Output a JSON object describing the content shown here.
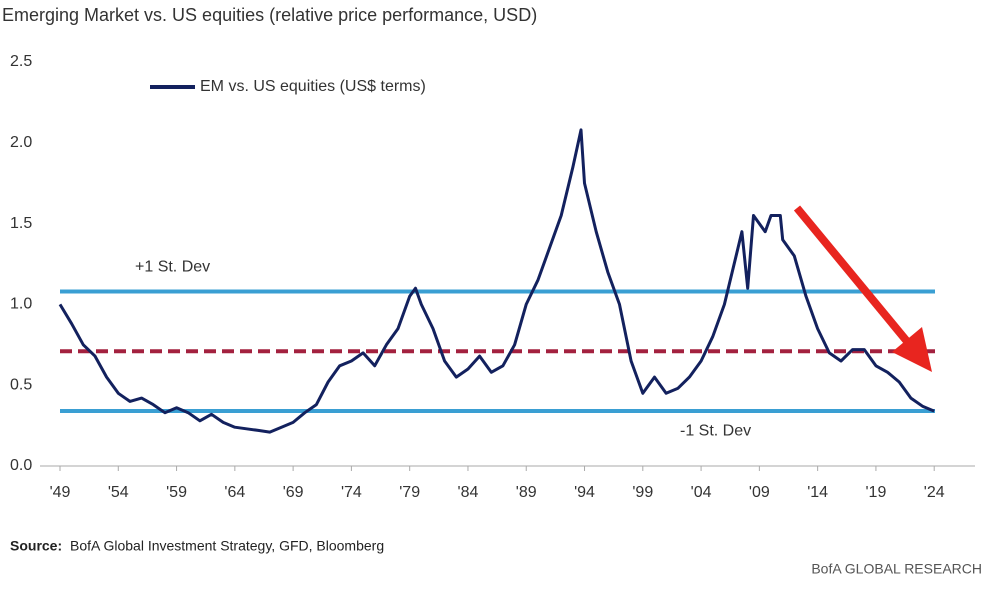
{
  "chart_data": {
    "type": "line",
    "title": "Emerging Market vs. US equities (relative price performance, USD)",
    "x": [
      1949,
      1950,
      1951,
      1952,
      1953,
      1954,
      1955,
      1956,
      1957,
      1958,
      1959,
      1960,
      1961,
      1962,
      1963,
      1964,
      1965,
      1966,
      1967,
      1968,
      1969,
      1970,
      1971,
      1972,
      1973,
      1974,
      1975,
      1976,
      1977,
      1978,
      1979,
      1979.5,
      1980,
      1981,
      1982,
      1983,
      1984,
      1985,
      1986,
      1987,
      1988,
      1989,
      1990,
      1991,
      1992,
      1993,
      1993.7,
      1994,
      1995,
      1996,
      1997,
      1998,
      1999,
      2000,
      2001,
      2002,
      2003,
      2004,
      2005,
      2006,
      2007,
      2007.5,
      2008,
      2008.5,
      2009.5,
      2010,
      2010.8,
      2011,
      2012,
      2013,
      2014,
      2015,
      2016,
      2017,
      2018,
      2019,
      2020,
      2021,
      2022,
      2023,
      2024
    ],
    "series": [
      {
        "name": "EM vs. US equities (US$ terms)",
        "color": "#13215e",
        "values": [
          1.0,
          0.88,
          0.75,
          0.68,
          0.55,
          0.45,
          0.4,
          0.42,
          0.38,
          0.33,
          0.36,
          0.33,
          0.28,
          0.32,
          0.27,
          0.24,
          0.23,
          0.22,
          0.21,
          0.24,
          0.27,
          0.33,
          0.38,
          0.52,
          0.62,
          0.65,
          0.7,
          0.62,
          0.75,
          0.85,
          1.05,
          1.1,
          1.0,
          0.85,
          0.65,
          0.55,
          0.6,
          0.68,
          0.58,
          0.62,
          0.75,
          1.0,
          1.15,
          1.35,
          1.55,
          1.85,
          2.08,
          1.75,
          1.45,
          1.2,
          1.0,
          0.65,
          0.45,
          0.55,
          0.45,
          0.48,
          0.55,
          0.65,
          0.8,
          1.0,
          1.3,
          1.45,
          1.1,
          1.55,
          1.45,
          1.55,
          1.55,
          1.4,
          1.3,
          1.05,
          0.85,
          0.7,
          0.65,
          0.72,
          0.72,
          0.62,
          0.58,
          0.52,
          0.42,
          0.37,
          0.34
        ]
      }
    ],
    "reference_lines": [
      {
        "value": 1.08,
        "label": "+1 St. Dev",
        "color": "#3a9fd3",
        "style": "solid"
      },
      {
        "value": 0.71,
        "color": "#a3213f",
        "style": "dashed"
      },
      {
        "value": 0.34,
        "label": "-1 St. Dev",
        "color": "#3a9fd3",
        "style": "solid"
      }
    ],
    "xlim": [
      1949,
      2027.5
    ],
    "xticks": [
      {
        "value": 1949,
        "label": "'49"
      },
      {
        "value": 1954,
        "label": "'54"
      },
      {
        "value": 1959,
        "label": "'59"
      },
      {
        "value": 1964,
        "label": "'64"
      },
      {
        "value": 1969,
        "label": "'69"
      },
      {
        "value": 1974,
        "label": "'74"
      },
      {
        "value": 1979,
        "label": "'79"
      },
      {
        "value": 1984,
        "label": "'84"
      },
      {
        "value": 1989,
        "label": "'89"
      },
      {
        "value": 1994,
        "label": "'94"
      },
      {
        "value": 1999,
        "label": "'99"
      },
      {
        "value": 2004,
        "label": "'04"
      },
      {
        "value": 2009,
        "label": "'09"
      },
      {
        "value": 2014,
        "label": "'14"
      },
      {
        "value": 2019,
        "label": "'19"
      },
      {
        "value": 2024,
        "label": "'24"
      }
    ],
    "ylim": [
      0,
      2.5
    ],
    "yticks": [
      {
        "value": 0,
        "label": "0.0"
      },
      0.5,
      {
        "value": 1,
        "label": "1.0"
      },
      1.5,
      {
        "value": 2,
        "label": "2.0"
      },
      2.5
    ],
    "grid": false,
    "source_label": "Source:",
    "source": "BofA Global Investment Strategy, GFD, Bloomberg",
    "footer": "BofA GLOBAL RESEARCH"
  }
}
